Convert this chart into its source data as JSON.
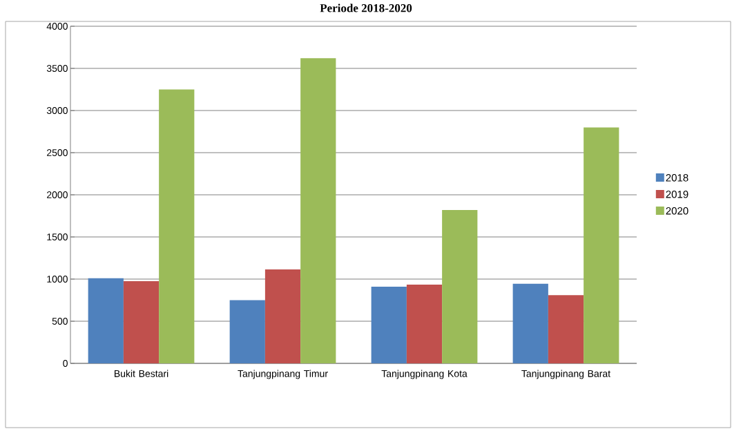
{
  "chart_data": {
    "type": "bar",
    "title": "Periode 2018-2020",
    "categories": [
      "Bukit Bestari",
      "Tanjungpinang Timur",
      "Tanjungpinang Kota",
      "Tanjungpinang Barat"
    ],
    "series": [
      {
        "name": "2018",
        "color": "#4f81bd",
        "values": [
          1010,
          750,
          910,
          945
        ]
      },
      {
        "name": "2019",
        "color": "#c0504d",
        "values": [
          975,
          1115,
          935,
          810
        ]
      },
      {
        "name": "2020",
        "color": "#9bbb59",
        "values": [
          3250,
          3620,
          1820,
          2800
        ]
      }
    ],
    "ylim": [
      0,
      4000
    ],
    "yticks": [
      0,
      500,
      1000,
      1500,
      2000,
      2500,
      3000,
      3500,
      4000
    ],
    "grid": "y",
    "legend": "right"
  }
}
